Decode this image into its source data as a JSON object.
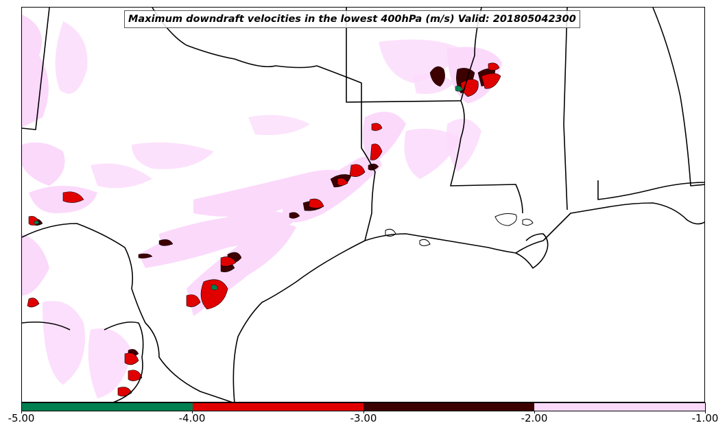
{
  "title": "Maximum downdraft velocities in the lowest 400hPa (m/s) Valid: 201805042300",
  "colorbar": {
    "segments": [
      {
        "from": -5.0,
        "to": -4.0,
        "color": "#007f50"
      },
      {
        "from": -4.0,
        "to": -3.0,
        "color": "#e00000"
      },
      {
        "from": -3.0,
        "to": -2.0,
        "color": "#3d0000"
      },
      {
        "from": -2.0,
        "to": -1.0,
        "color": "#fbd9fb"
      }
    ],
    "tick_labels": [
      "-5.00",
      "-4.00",
      "-3.00",
      "-2.00",
      "-1.00"
    ]
  },
  "field_colors": {
    "weak": "#fbd9fb",
    "moderate": "#3d0000",
    "strong": "#e00000",
    "extreme": "#007f50",
    "borders": "#000000"
  }
}
